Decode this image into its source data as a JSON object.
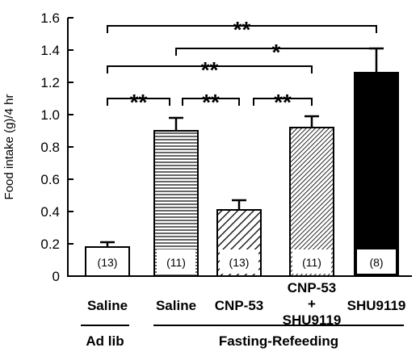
{
  "chart_data": {
    "type": "bar",
    "ylabel": "Food intake (g)/4 hr",
    "ylim": [
      0,
      1.6
    ],
    "yticks": [
      "0",
      "0.2",
      "0.4",
      "0.6",
      "0.8",
      "1.0",
      "1.2",
      "1.4",
      "1.6"
    ],
    "categories": [
      "Saline",
      "Saline",
      "CNP-53",
      "CNP-53\n+\nSHU9119",
      "SHU9119"
    ],
    "values": [
      0.18,
      0.9,
      0.41,
      0.92,
      1.26
    ],
    "errors": [
      0.03,
      0.08,
      0.06,
      0.07,
      0.15
    ],
    "n_labels": [
      "(13)",
      "(11)",
      "(13)",
      "(11)",
      "(8)"
    ],
    "patterns": [
      "white",
      "horizontal-lines",
      "diagonal-wide",
      "diagonal-dense",
      "black"
    ],
    "groups": [
      {
        "label": "Ad lib",
        "bars": [
          0
        ]
      },
      {
        "label": "Fasting-Refeeding",
        "bars": [
          1,
          2,
          3,
          4
        ]
      }
    ],
    "significance": [
      {
        "from": 0,
        "to": 4,
        "label": "**",
        "y": 1.55
      },
      {
        "from": 1,
        "to": 4,
        "label": "*",
        "y": 1.41
      },
      {
        "from": 0,
        "to": 3,
        "label": "**",
        "y": 1.3
      },
      {
        "from": 0,
        "to": 1,
        "label": "**",
        "y": 1.1
      },
      {
        "from": 1,
        "to": 2,
        "label": "**",
        "y": 1.1
      },
      {
        "from": 2,
        "to": 3,
        "label": "**",
        "y": 1.1
      }
    ],
    "grid": false
  }
}
